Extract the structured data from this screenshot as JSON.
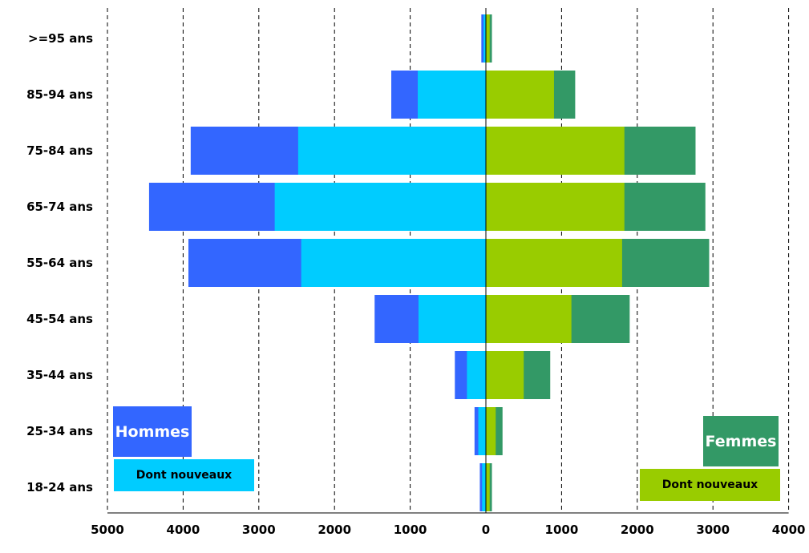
{
  "chart_data": {
    "type": "bar",
    "orientation": "horizontal-pyramid",
    "categories": [
      ">=95 ans",
      "85-94 ans",
      "75-84 ans",
      "65-74 ans",
      "55-64 ans",
      "45-54 ans",
      "35-44 ans",
      "25-34 ans",
      "18-24 ans"
    ],
    "series": [
      {
        "name": "Hommes",
        "side": "left",
        "values": [
          60,
          1250,
          3900,
          4450,
          3930,
          1470,
          410,
          150,
          80
        ]
      },
      {
        "name": "Dont nouveaux",
        "side": "left",
        "values": [
          30,
          900,
          2480,
          2790,
          2440,
          890,
          250,
          100,
          50
        ]
      },
      {
        "name": "Femmes",
        "side": "right",
        "values": [
          80,
          1180,
          2770,
          2900,
          2950,
          1900,
          850,
          220,
          80
        ]
      },
      {
        "name": "Dont nouveaux",
        "side": "right",
        "values": [
          50,
          900,
          1830,
          1830,
          1800,
          1130,
          500,
          130,
          50
        ]
      }
    ],
    "x_ticks": [
      "5000",
      "4000",
      "3000",
      "2000",
      "1000",
      "0",
      "1000",
      "2000",
      "3000",
      "4000"
    ],
    "xlim_left": 5000,
    "xlim_right": 4000,
    "grid": "vertical dashed",
    "colors": {
      "hommes": "#3366ff",
      "hommes_nouveaux": "#00ccff",
      "femmes": "#339966",
      "femmes_nouveaux": "#99cc00"
    }
  },
  "legend": {
    "hommes": "Hommes",
    "hommes_nouveaux": "Dont nouveaux",
    "femmes": "Femmes",
    "femmes_nouveaux": "Dont nouveaux"
  }
}
